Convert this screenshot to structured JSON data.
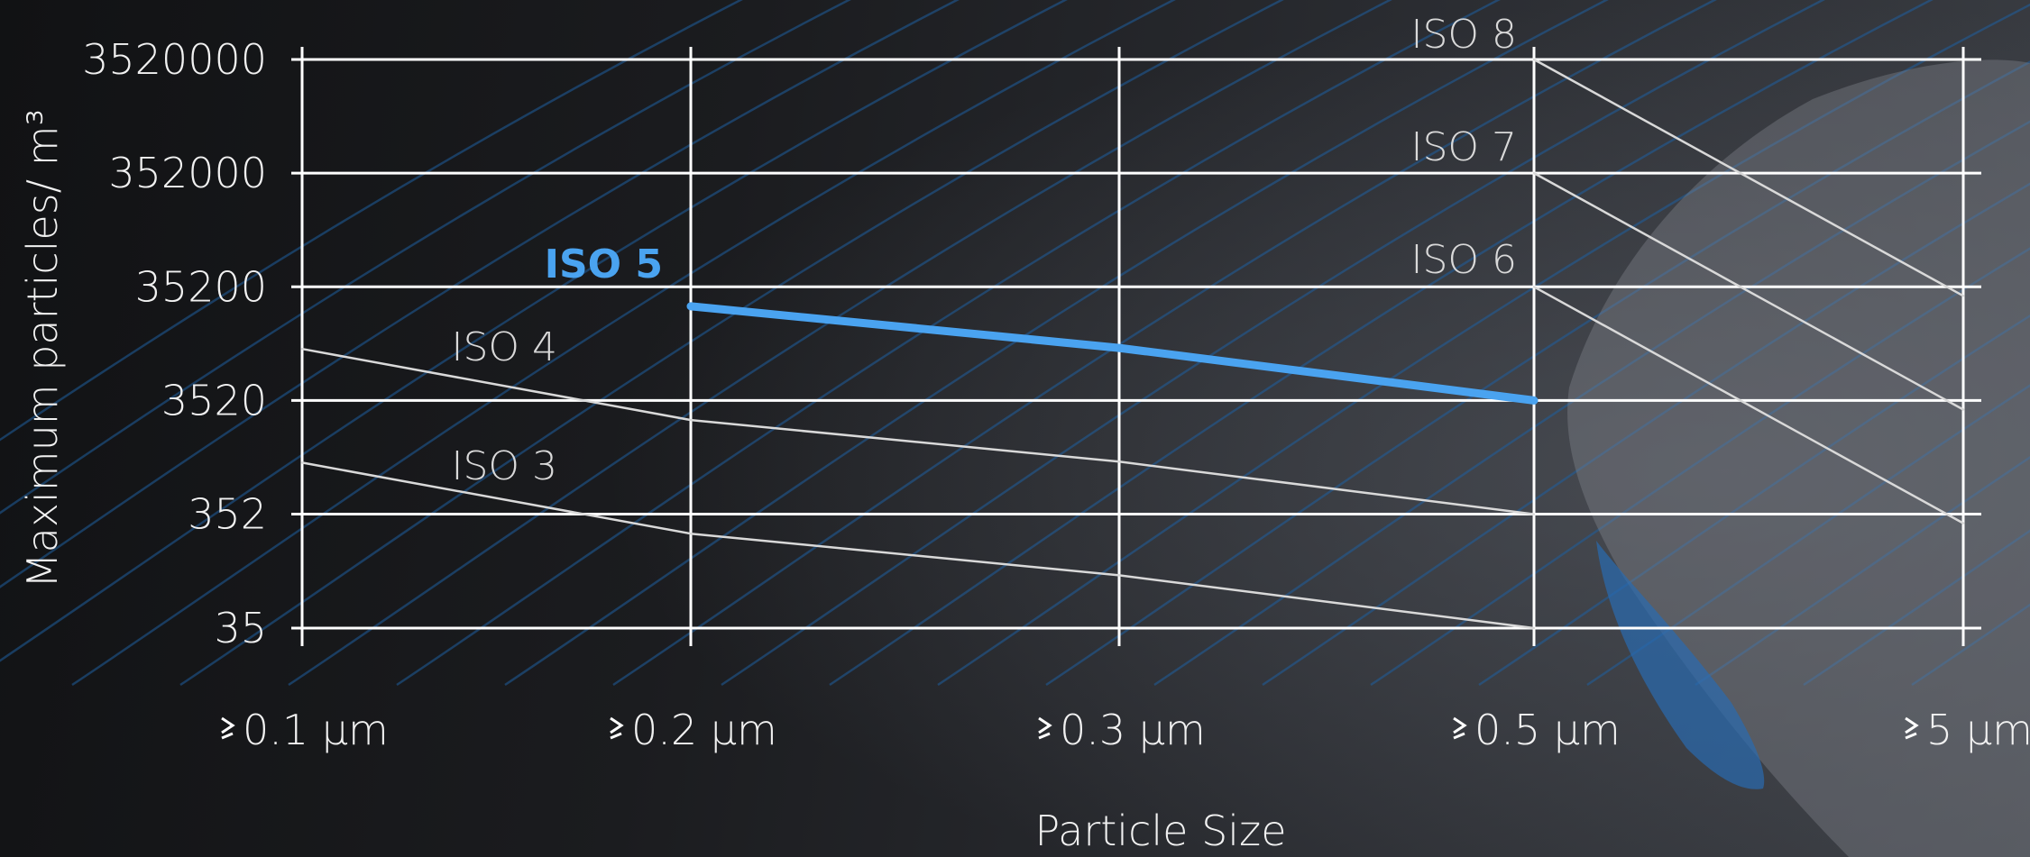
{
  "chart_data": {
    "type": "line",
    "xlabel": "Particle Size",
    "ylabel": "Maximum particles/ m³",
    "y_scale": "log",
    "ylim": [
      35,
      3520000
    ],
    "grid": true,
    "categories": [
      "0.1 µm",
      "0.2 µm",
      "0.3 µm",
      "0.5 µm",
      "5 µm"
    ],
    "category_prefix": "≥",
    "y_ticks": [
      "3520000",
      "352000",
      "35200",
      "3520",
      "352",
      "35"
    ],
    "y_tick_values": [
      3520000,
      352000,
      35200,
      3520,
      352,
      35
    ],
    "series": [
      {
        "name": "ISO 3",
        "values": [
          1000,
          237,
          102,
          35,
          null
        ],
        "color": "#d9d9d9",
        "highlight": false
      },
      {
        "name": "ISO 4",
        "values": [
          10000,
          2370,
          1020,
          352,
          null
        ],
        "color": "#d9d9d9",
        "highlight": false
      },
      {
        "name": "ISO 5",
        "values": [
          null,
          23700,
          10200,
          3520,
          null
        ],
        "color": "#4aa3f0",
        "highlight": true
      },
      {
        "name": "ISO 6",
        "values": [
          null,
          null,
          null,
          35200,
          293
        ],
        "color": "#d9d9d9",
        "highlight": false
      },
      {
        "name": "ISO 7",
        "values": [
          null,
          null,
          null,
          352000,
          2930
        ],
        "color": "#d9d9d9",
        "highlight": false
      },
      {
        "name": "ISO 8",
        "values": [
          null,
          null,
          null,
          3520000,
          29300
        ],
        "color": "#d9d9d9",
        "highlight": false
      }
    ],
    "grid_color": "#ffffff",
    "accent_color": "#4aa3f0"
  }
}
